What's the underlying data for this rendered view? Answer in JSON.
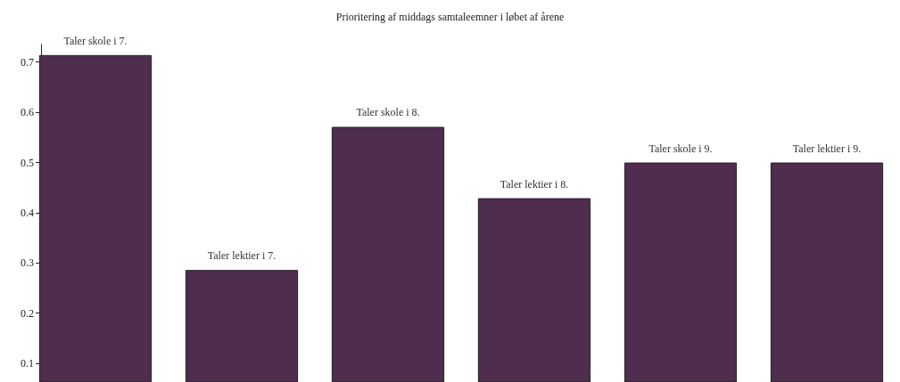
{
  "chart_data": {
    "type": "bar",
    "title": "Prioritering af middags samtaleemner i løbet af årene",
    "categories": [
      "Taler skole i 7.",
      "Taler lektier i 7.",
      "Taler skole i 8.",
      "Taler lektier i 8.",
      "Taler skole i 9.",
      "Taler lektier i 9."
    ],
    "values": [
      0.714,
      0.286,
      0.571,
      0.429,
      0.5,
      0.5
    ],
    "color": "#4f2d4f",
    "ylim": [
      0.063,
      0.735
    ],
    "yticks": [
      0.1,
      0.2,
      0.3,
      0.4,
      0.5,
      0.6,
      0.7
    ],
    "grid": false
  }
}
